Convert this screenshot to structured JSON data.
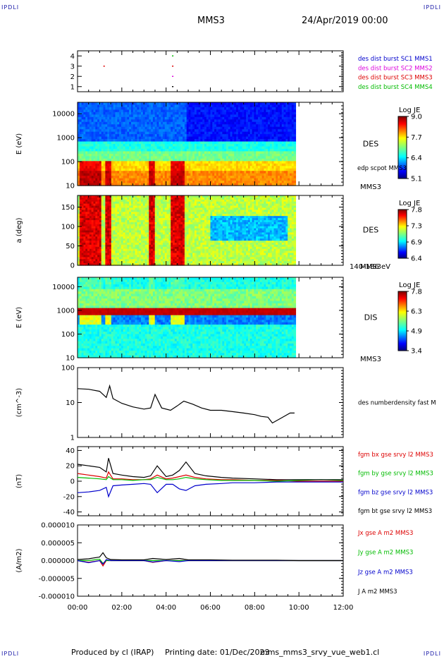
{
  "corners": {
    "top_left": "IPDLI",
    "top_right": "IPDLI",
    "bottom_left": "IPDLI",
    "bottom_right": "IPDLI"
  },
  "header": {
    "spacecraft": "MMS3",
    "date": "24/Apr/2019 00:00"
  },
  "footer": {
    "produced_by": "Produced by cl (IRAP)",
    "printing_date": "Printing date: 01/Dec/2023",
    "filename": "mms_mms3_srvy_vue_web1.cl"
  },
  "colors": {
    "black": "#000000",
    "blue": "#0000cc",
    "magenta": "#dd00dd",
    "red": "#dd0000",
    "green": "#00bb00"
  },
  "time_axis": {
    "ticks": [
      "00:00",
      "02:00",
      "04:00",
      "06:00",
      "08:00",
      "10:00",
      "12:00"
    ],
    "range_hours": [
      0,
      12
    ]
  },
  "chart_data": [
    {
      "type": "scatter",
      "name": "burst",
      "ylim": [
        0.5,
        4.5
      ],
      "yticks": [
        1,
        2,
        3,
        4
      ],
      "legend": [
        {
          "label": "des dist burst SC1 MMS1",
          "color": "#0000cc"
        },
        {
          "label": "des dist burst SC2 MMS2",
          "color": "#dd00dd"
        },
        {
          "label": "des dist burst SC3 MMS3",
          "color": "#dd0000"
        },
        {
          "label": "des dist burst SC4 MMS4",
          "color": "#00bb00"
        }
      ],
      "points": [
        {
          "x": 1.2,
          "y": 3,
          "color": "#dd0000"
        },
        {
          "x": 4.3,
          "y": 4,
          "color": "#00bb00"
        },
        {
          "x": 4.3,
          "y": 3,
          "color": "#dd0000"
        },
        {
          "x": 4.3,
          "y": 2,
          "color": "#dd00dd"
        },
        {
          "x": 4.3,
          "y": 1,
          "color": "#000000"
        }
      ]
    },
    {
      "type": "heatmap",
      "name": "des-energy",
      "ylabel": "E (eV)",
      "yscale": "log",
      "ylim": [
        10,
        30000
      ],
      "yticks": [
        "10",
        "100",
        "1000",
        "10000"
      ],
      "side_labels": [
        "DES",
        "MMS3"
      ],
      "overlay_label": "edp scpot MMS3",
      "data_end_hours": 9.85,
      "colorbar": {
        "title": "Log JE",
        "ticks": [
          "9.0",
          "7.7",
          "6.4",
          "5.1"
        ],
        "min": 5.1,
        "max": 9.0
      }
    },
    {
      "type": "heatmap",
      "name": "des-pitch",
      "ylabel": "a (deg)",
      "ylim": [
        0,
        180
      ],
      "yticks": [
        "0",
        "50",
        "100",
        "150"
      ],
      "side_labels": [
        "DES",
        "MMS3"
      ],
      "bottom_label": "140-186 eV",
      "data_end_hours": 9.85,
      "colorbar": {
        "title": "Log JE",
        "ticks": [
          "7.8",
          "7.3",
          "6.9",
          "6.4"
        ],
        "min": 6.4,
        "max": 7.8
      }
    },
    {
      "type": "heatmap",
      "name": "dis-energy",
      "ylabel": "E (eV)",
      "yscale": "log",
      "ylim": [
        10,
        25000
      ],
      "yticks": [
        "10",
        "100",
        "1000",
        "10000"
      ],
      "side_labels": [
        "DIS",
        "MMS3"
      ],
      "data_end_hours": 9.85,
      "colorbar": {
        "title": "Log JE",
        "ticks": [
          "7.8",
          "6.3",
          "4.9",
          "3.4"
        ],
        "min": 3.4,
        "max": 7.8
      }
    },
    {
      "type": "line",
      "name": "density",
      "ylabel": "(cm^-3)",
      "yscale": "log",
      "ylim": [
        1,
        100
      ],
      "yticks": [
        "1",
        "10",
        "100"
      ],
      "legend": [
        {
          "label": "des numberdensity fast M",
          "color": "#000000"
        }
      ],
      "x": [
        0,
        0.5,
        1.0,
        1.3,
        1.45,
        1.6,
        2.0,
        2.5,
        3.0,
        3.3,
        3.5,
        3.8,
        4.2,
        4.5,
        4.8,
        5.2,
        5.6,
        6.0,
        6.5,
        7.0,
        7.5,
        8.0,
        8.3,
        8.6,
        8.8,
        9.2,
        9.6,
        9.8
      ],
      "y": [
        25,
        24,
        21,
        14,
        30,
        13,
        9.5,
        7.5,
        6.5,
        7,
        17,
        7,
        6,
        8,
        11,
        9,
        7,
        6,
        6,
        5.5,
        5,
        4.5,
        4,
        3.8,
        2.6,
        3.6,
        5,
        5
      ]
    },
    {
      "type": "line",
      "name": "magnetic-field",
      "ylabel": "(nT)",
      "ylim": [
        -45,
        45
      ],
      "yticks": [
        "-40",
        "-20",
        "0",
        "20",
        "40"
      ],
      "legend": [
        {
          "label": "fgm bx gse srvy l2 MMS3",
          "color": "#dd0000"
        },
        {
          "label": "fgm by gse srvy l2 MMS3",
          "color": "#00bb00"
        },
        {
          "label": "fgm bz gse srvy l2 MMS3",
          "color": "#0000cc"
        },
        {
          "label": "fgm bt gse srvy l2 MMS3",
          "color": "#000000"
        }
      ],
      "x": [
        0,
        0.5,
        1.0,
        1.3,
        1.4,
        1.6,
        2.0,
        2.5,
        3.0,
        3.3,
        3.6,
        4.0,
        4.3,
        4.6,
        4.9,
        5.3,
        5.8,
        6.5,
        7.0,
        8.0,
        9.0,
        10.0,
        11.0,
        12.0
      ],
      "series": [
        {
          "name": "fgm bx gse srvy l2 MMS3",
          "color": "#dd0000",
          "values": [
            10,
            8,
            6,
            4,
            12,
            3,
            3,
            2,
            2,
            3,
            8,
            3,
            4,
            6,
            8,
            5,
            3,
            2,
            2,
            1,
            1,
            0,
            0,
            0
          ]
        },
        {
          "name": "fgm by gse srvy l2 MMS3",
          "color": "#00bb00",
          "values": [
            5,
            4,
            3,
            2,
            6,
            2,
            2,
            1,
            2,
            2,
            5,
            2,
            2,
            3,
            5,
            3,
            2,
            1,
            1,
            1,
            0,
            1,
            2,
            1
          ]
        },
        {
          "name": "fgm bz gse srvy l2 MMS3",
          "color": "#0000cc",
          "values": [
            -15,
            -14,
            -12,
            -8,
            -20,
            -6,
            -5,
            -4,
            -3,
            -4,
            -15,
            -4,
            -4,
            -10,
            -12,
            -6,
            -4,
            -3,
            -2,
            -2,
            -1,
            -1,
            -1,
            -1
          ]
        },
        {
          "name": "fgm bt gse srvy l2 MMS3",
          "color": "#000000",
          "values": [
            22,
            20,
            18,
            12,
            30,
            10,
            8,
            6,
            5,
            7,
            20,
            6,
            8,
            14,
            25,
            10,
            7,
            5,
            4,
            3,
            2,
            2,
            2,
            2
          ]
        }
      ]
    },
    {
      "type": "line",
      "name": "current-density",
      "ylabel": "(A/m2)",
      "ylim": [
        -1e-05,
        1e-05
      ],
      "yticks": [
        "-0.000010",
        "-0.000005",
        "0.000000",
        "0.000005",
        "0.000010"
      ],
      "legend": [
        {
          "label": "Jx gse A m2 MMS3",
          "color": "#dd0000"
        },
        {
          "label": "Jy gse A m2 MMS3",
          "color": "#00bb00"
        },
        {
          "label": "Jz gse A m2 MMS3",
          "color": "#0000cc"
        },
        {
          "label": "J A m2 MMS3",
          "color": "#000000"
        }
      ],
      "x": [
        0,
        0.5,
        1.0,
        1.15,
        1.3,
        1.5,
        2.0,
        3.0,
        3.4,
        4.0,
        4.6,
        5.0,
        6.0,
        7.0,
        8.0,
        9.0,
        10.0,
        11.0,
        12.0
      ],
      "series": [
        {
          "name": "Jx gse A m2 MMS3",
          "color": "#dd0000",
          "values": [
            0,
            -5e-07,
            0,
            -1.5e-06,
            0,
            0,
            0,
            0,
            -5e-07,
            0,
            0,
            0,
            0,
            0,
            0,
            0,
            0,
            0,
            0
          ]
        },
        {
          "name": "Jy gse A m2 MMS3",
          "color": "#00bb00",
          "values": [
            0,
            0,
            4e-07,
            -8e-07,
            0,
            0,
            0,
            0,
            0,
            0,
            0,
            0,
            0,
            0,
            0,
            0,
            0,
            0,
            0
          ]
        },
        {
          "name": "Jz gse A m2 MMS3",
          "color": "#0000cc",
          "values": [
            0,
            -6e-07,
            0,
            -1e-06,
            3e-07,
            0,
            0,
            0,
            -4e-07,
            0,
            -3e-07,
            0,
            0,
            0,
            0,
            0,
            0,
            0,
            0
          ]
        },
        {
          "name": "J A m2 MMS3",
          "color": "#000000",
          "values": [
            3e-07,
            5e-07,
            1e-06,
            2.2e-06,
            8e-07,
            3e-07,
            2e-07,
            2e-07,
            6e-07,
            3e-07,
            6e-07,
            2e-07,
            2e-07,
            1e-07,
            1e-07,
            1e-07,
            0,
            0,
            0
          ]
        }
      ]
    }
  ]
}
